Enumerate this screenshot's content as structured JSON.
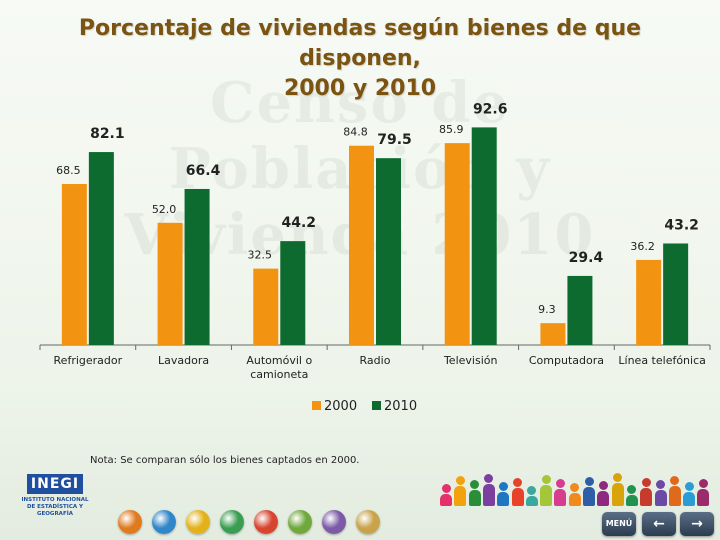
{
  "title_line1": "Porcentaje de viviendas según bienes de que disponen,",
  "title_line2": "2000 y 2010",
  "watermark": "Censo de Población y Vivienda 2010",
  "footnote": "Nota: Se comparan sólo los bienes captados en 2000.",
  "logo": {
    "name": "INEGI",
    "line1": "INSTITUTO NACIONAL",
    "line2": "DE ESTADÍSTICA Y GEOGRAFÍA"
  },
  "nav": {
    "menu_label": "MENÚ",
    "back_icon": "arrow-left-icon",
    "next_icon": "arrow-right-icon"
  },
  "colors": {
    "series_2000": "#f29412",
    "series_2010": "#0e6b2f"
  },
  "chart_data": {
    "type": "bar",
    "title": "Porcentaje de viviendas según bienes de que disponen, 2000 y 2010",
    "categories": [
      "Refrigerador",
      "Lavadora",
      "Automóvil o camioneta",
      "Radio",
      "Televisión",
      "Computadora",
      "Línea telefónica"
    ],
    "category_lines": [
      [
        "Refrigerador"
      ],
      [
        "Lavadora"
      ],
      [
        "Automóvil o",
        "camioneta"
      ],
      [
        "Radio"
      ],
      [
        "Televisión"
      ],
      [
        "Computadora"
      ],
      [
        "Línea telefónica"
      ]
    ],
    "series": [
      {
        "name": "2000",
        "values": [
          68.5,
          52.0,
          32.5,
          84.8,
          85.9,
          9.3,
          36.2
        ]
      },
      {
        "name": "2010",
        "values": [
          82.1,
          66.4,
          44.2,
          79.5,
          92.6,
          29.4,
          43.2
        ]
      }
    ],
    "value_labels_2000": [
      "68.5",
      "52.0",
      "32.5",
      "84.8",
      "85.9",
      "9.3",
      "36.2"
    ],
    "value_labels_2010": [
      "82.1",
      "66.4",
      "44.2",
      "79.5",
      "92.6",
      "29.4",
      "43.2"
    ],
    "ylim": [
      0,
      100
    ],
    "grid": false,
    "legend_position": "bottom"
  }
}
